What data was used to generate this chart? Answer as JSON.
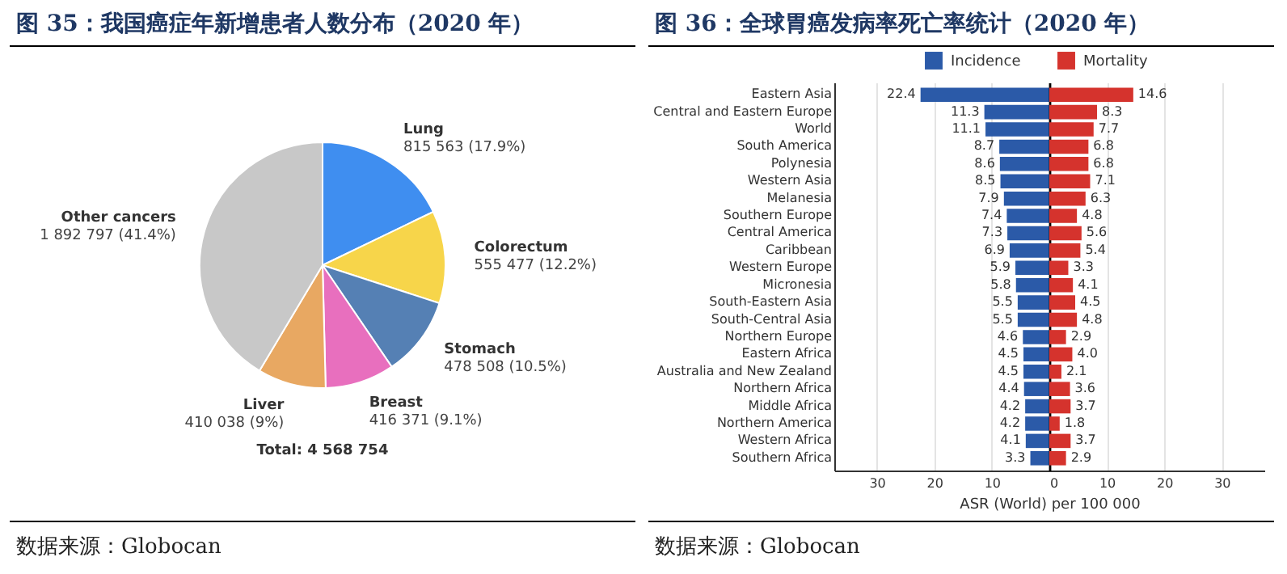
{
  "chart_data": [
    {
      "type": "pie",
      "title": "图 35：我国癌症年新增患者人数分布（2020 年）",
      "categories": [
        "Lung",
        "Colorectum",
        "Stomach",
        "Breast",
        "Liver",
        "Other cancers"
      ],
      "values": [
        815563,
        555477,
        478508,
        416371,
        410038,
        1892797
      ],
      "value_labels": [
        "815 563 (17.9%)",
        "555 477 (12.2%)",
        "478 508 (10.5%)",
        "416 371 (9.1%)",
        "410 038 (9%)",
        "1 892 797 (41.4%)"
      ],
      "colors": [
        "#3f8ef0",
        "#f7d54a",
        "#5580b4",
        "#e86fbe",
        "#e8a862",
        "#c8c8c8"
      ],
      "annotations": [
        "Total: 4 568 754",
        "数据来源：Globocan"
      ]
    },
    {
      "type": "bar",
      "orientation": "horizontal",
      "title": "图 36：全球胃癌发病率死亡率统计（2020 年）",
      "categories": [
        "Eastern Asia",
        "Central and Eastern Europe",
        "World",
        "South America",
        "Polynesia",
        "Western Asia",
        "Melanesia",
        "Southern Europe",
        "Central America",
        "Caribbean",
        "Western Europe",
        "Micronesia",
        "South-Eastern Asia",
        "South-Central Asia",
        "Northern Europe",
        "Eastern Africa",
        "Australia and New Zealand",
        "Northern Africa",
        "Middle Africa",
        "Northern America",
        "Western Africa",
        "Southern Africa"
      ],
      "series": [
        {
          "name": "Incidence",
          "color": "#2b5aa8",
          "values": [
            22.4,
            11.3,
            11.1,
            8.7,
            8.6,
            8.5,
            7.9,
            7.4,
            7.3,
            6.9,
            5.9,
            5.8,
            5.5,
            5.5,
            4.6,
            4.5,
            4.5,
            4.4,
            4.2,
            4.2,
            4.1,
            3.3
          ]
        }
      ],
      "data_labels": true,
      "xlim": [
        37.4,
        0
      ],
      "xticks": [
        30,
        20,
        10
      ],
      "grid": "x",
      "legend": "top right"
    },
    {
      "type": "bar",
      "orientation": "horizontal",
      "categories": [
        null,
        null,
        null,
        null,
        null,
        null,
        null,
        null,
        null,
        null,
        null,
        null,
        null,
        null,
        null,
        null,
        null,
        null,
        null,
        null,
        null,
        null
      ],
      "series": [
        {
          "name": "Mortality",
          "color": "#d5332d",
          "values": [
            14.6,
            8.3,
            7.7,
            6.8,
            6.8,
            7.1,
            6.3,
            4.8,
            5.6,
            5.4,
            3.3,
            4.1,
            4.5,
            4.8,
            2.9,
            4.0,
            2.1,
            3.6,
            3.7,
            1.8,
            3.7,
            2.9
          ],
          "value_labels": [
            "14.6",
            "8.3",
            "7.7",
            "6.8",
            "6.8",
            "7.1",
            "6.3",
            "4.8",
            "5.6",
            "5.4",
            "3.3",
            "4.1",
            "4.5",
            "4.8",
            "2.9",
            "4.0",
            "2.1",
            "3.6",
            "3.7",
            "1.8",
            "3.7",
            "2.9"
          ]
        }
      ],
      "xlim": [
        0,
        37.4
      ],
      "xticks": [
        0,
        10,
        20,
        30
      ],
      "grid": "x",
      "legend": "top left",
      "tick_labels": "x",
      "xlabel": "ASR (World) per 100 000",
      "annotations": [
        "数据来源：Globocan"
      ]
    }
  ]
}
